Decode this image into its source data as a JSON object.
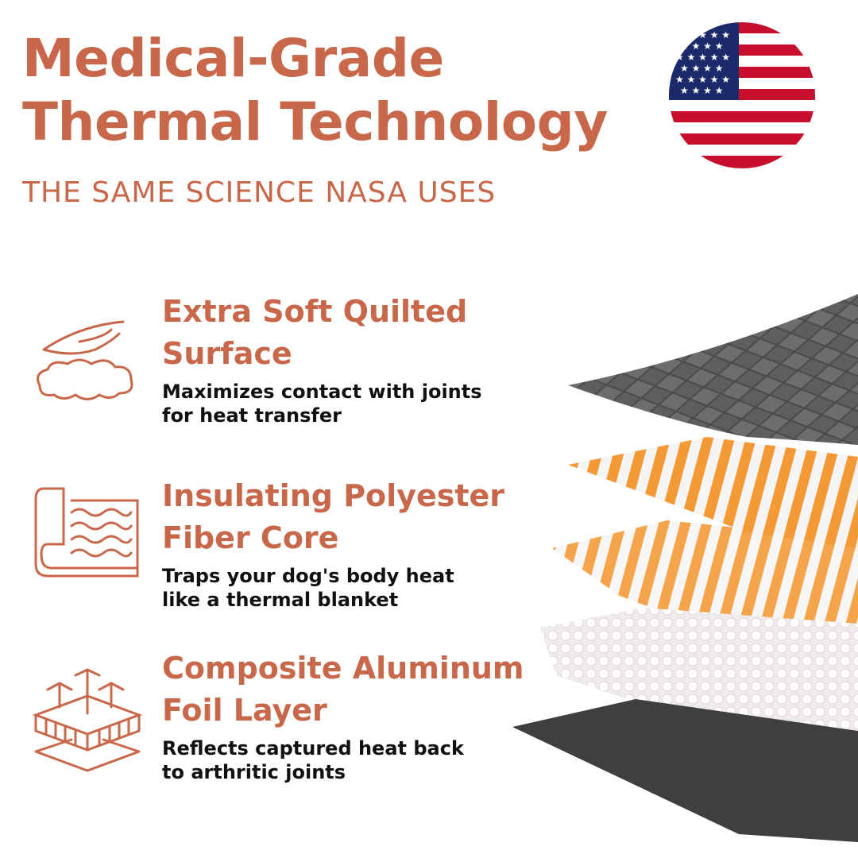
{
  "header": {
    "title_line1": "Medical-Grade",
    "title_line2": "Thermal Technology",
    "subtitle": "THE SAME SCIENCE NASA USES"
  },
  "brand_color": "#C8674A",
  "flag": "us-flag-icon",
  "features": [
    {
      "icon": "feather-cloud-icon",
      "title_line1": "Extra Soft Quilted",
      "title_line2": "Surface",
      "desc_line1": "Maximizes contact with joints",
      "desc_line2": "for heat transfer"
    },
    {
      "icon": "blanket-waves-icon",
      "title_line1": "Insulating Polyester",
      "title_line2": "Fiber Core",
      "desc_line1": "Traps your dog's body heat",
      "desc_line2": "like a thermal blanket"
    },
    {
      "icon": "layered-heat-icon",
      "title_line1": "Composite Aluminum",
      "title_line2": "Foil Layer",
      "desc_line1": "Reflects captured heat back",
      "desc_line2": "to arthritic joints"
    }
  ]
}
